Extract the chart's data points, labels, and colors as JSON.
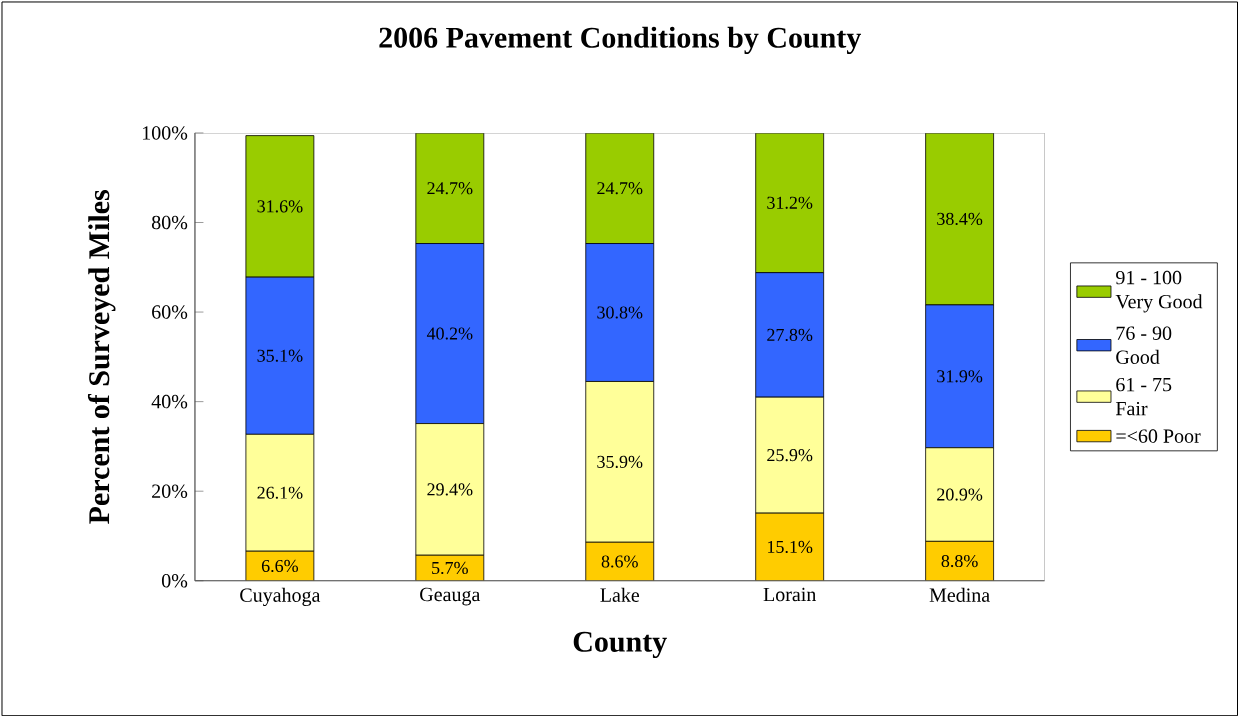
{
  "chart_data": {
    "type": "bar",
    "stacked": true,
    "title": "2006 Pavement Conditions by County",
    "xlabel": "County",
    "ylabel": "Percent of Surveyed Miles",
    "categories": [
      "Cuyahoga",
      "Geauga",
      "Lake",
      "Lorain",
      "Medina"
    ],
    "series": [
      {
        "name": "=<60 Poor",
        "color": "#ffcc00",
        "values": [
          6.6,
          5.7,
          8.6,
          15.1,
          8.8
        ],
        "value_labels": [
          "6.6%",
          "5.7%",
          "8.6%",
          "15.1%",
          "8.8%"
        ]
      },
      {
        "name": "61 - 75 Fair",
        "color": "#ffff99",
        "values": [
          26.1,
          29.4,
          35.9,
          25.9,
          20.9
        ],
        "value_labels": [
          "26.1%",
          "29.4%",
          "35.9%",
          "25.9%",
          "20.9%"
        ]
      },
      {
        "name": "76 - 90 Good",
        "color": "#3366ff",
        "values": [
          35.1,
          40.2,
          30.8,
          27.8,
          31.9
        ],
        "value_labels": [
          "35.1%",
          "40.2%",
          "30.8%",
          "27.8%",
          "31.9%"
        ]
      },
      {
        "name": "91 - 100 Very Good",
        "color": "#99cc00",
        "values": [
          31.6,
          24.7,
          24.7,
          31.2,
          38.4
        ],
        "value_labels": [
          "31.6%",
          "24.7%",
          "24.7%",
          "31.2%",
          "38.4%"
        ]
      }
    ],
    "ylim": [
      0,
      100
    ],
    "yticks": [
      {
        "value": 0,
        "label": "0%"
      },
      {
        "value": 20,
        "label": "20%"
      },
      {
        "value": 40,
        "label": "40%"
      },
      {
        "value": 60,
        "label": "60%"
      },
      {
        "value": 80,
        "label": "80%"
      },
      {
        "value": 100,
        "label": "100%"
      }
    ],
    "grid": false,
    "legend": "right"
  }
}
